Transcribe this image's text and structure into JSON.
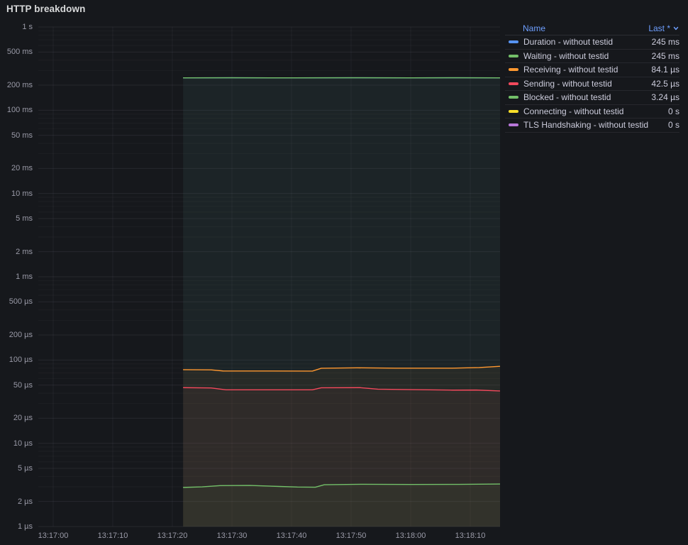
{
  "panel": {
    "title": "HTTP breakdown"
  },
  "legend": {
    "name_header": "Name",
    "last_header": "Last *",
    "sort_icon": "chevron-down-icon",
    "link_color": "#6e9fff"
  },
  "chart_data": {
    "type": "line",
    "title": "HTTP breakdown",
    "legend_position": "right-table",
    "grid": true,
    "x_axis": {
      "tick_labels": [
        "13:17:00",
        "13:17:10",
        "13:17:20",
        "13:17:30",
        "13:17:40",
        "13:17:50",
        "13:18:00",
        "13:18:10"
      ],
      "tick_interval_seconds": 10,
      "data_start": "13:17:22",
      "data_end": "13:18:15"
    },
    "y_axis": {
      "scale": "log10",
      "unit": "duration",
      "range": [
        "1 µs",
        "1 s"
      ],
      "ticks": [
        {
          "label": "1 s",
          "seconds": 1
        },
        {
          "label": "500 ms",
          "seconds": 0.5
        },
        {
          "label": "200 ms",
          "seconds": 0.2
        },
        {
          "label": "100 ms",
          "seconds": 0.1
        },
        {
          "label": "50 ms",
          "seconds": 0.05
        },
        {
          "label": "20 ms",
          "seconds": 0.02
        },
        {
          "label": "10 ms",
          "seconds": 0.01
        },
        {
          "label": "5 ms",
          "seconds": 0.005
        },
        {
          "label": "2 ms",
          "seconds": 0.002
        },
        {
          "label": "1 ms",
          "seconds": 0.001
        },
        {
          "label": "500 µs",
          "seconds": 0.0005
        },
        {
          "label": "200 µs",
          "seconds": 0.0002
        },
        {
          "label": "100 µs",
          "seconds": 0.0001
        },
        {
          "label": "50 µs",
          "seconds": 5e-05
        },
        {
          "label": "20 µs",
          "seconds": 2e-05
        },
        {
          "label": "10 µs",
          "seconds": 1e-05
        },
        {
          "label": "5 µs",
          "seconds": 5e-06
        },
        {
          "label": "2 µs",
          "seconds": 2e-06
        },
        {
          "label": "1 µs",
          "seconds": 1e-06
        }
      ]
    },
    "series": [
      {
        "name": "Duration - without testid",
        "color": "#5794F2",
        "last": "245 ms",
        "points_offset_s_value_us": [
          [
            21.8,
            245000
          ],
          [
            30,
            245400
          ],
          [
            40,
            244900
          ],
          [
            50,
            245500
          ],
          [
            60,
            245100
          ],
          [
            68,
            245600
          ],
          [
            75,
            245000
          ]
        ]
      },
      {
        "name": "Waiting - without testid",
        "color": "#73BF69",
        "last": "245 ms",
        "points_offset_s_value_us": [
          [
            21.8,
            245000
          ],
          [
            30,
            245400
          ],
          [
            40,
            244900
          ],
          [
            50,
            245500
          ],
          [
            60,
            245100
          ],
          [
            68,
            245600
          ],
          [
            75,
            245000
          ]
        ]
      },
      {
        "name": "Receiving - without testid",
        "color": "#FF9830",
        "last": "84.1 µs",
        "points_offset_s_value_us": [
          [
            21.8,
            76.5
          ],
          [
            26.5,
            76.2
          ],
          [
            28.5,
            73.9
          ],
          [
            43.5,
            73.6
          ],
          [
            45,
            79.6
          ],
          [
            51,
            80.6
          ],
          [
            57.5,
            79.9
          ],
          [
            67,
            79.9
          ],
          [
            71.5,
            81.2
          ],
          [
            75,
            84.1
          ]
        ]
      },
      {
        "name": "Sending - without testid",
        "color": "#F2495C",
        "last": "42.5 µs",
        "points_offset_s_value_us": [
          [
            21.8,
            46.6
          ],
          [
            26.5,
            46.2
          ],
          [
            29,
            43.9
          ],
          [
            43.5,
            43.9
          ],
          [
            45,
            46.4
          ],
          [
            51.5,
            46.6
          ],
          [
            54.5,
            44.6
          ],
          [
            58,
            44.3
          ],
          [
            67,
            43.5
          ],
          [
            71,
            43.6
          ],
          [
            75,
            42.5
          ]
        ]
      },
      {
        "name": "Blocked - without testid",
        "color": "#73BF69",
        "last": "3.24 µs",
        "points_offset_s_value_us": [
          [
            21.8,
            2.95
          ],
          [
            25,
            3.0
          ],
          [
            28,
            3.1
          ],
          [
            33,
            3.12
          ],
          [
            38,
            3.03
          ],
          [
            41,
            2.98
          ],
          [
            44,
            2.97
          ],
          [
            45.5,
            3.18
          ],
          [
            52,
            3.22
          ],
          [
            60,
            3.2
          ],
          [
            68,
            3.21
          ],
          [
            75,
            3.24
          ]
        ]
      },
      {
        "name": "Connecting - without testid",
        "color": "#FADE2A",
        "last": "0 s",
        "points_offset_s_value_us": []
      },
      {
        "name": "TLS Handshaking - without testid",
        "color": "#B877D9",
        "last": "0 s",
        "points_offset_s_value_us": []
      }
    ]
  }
}
